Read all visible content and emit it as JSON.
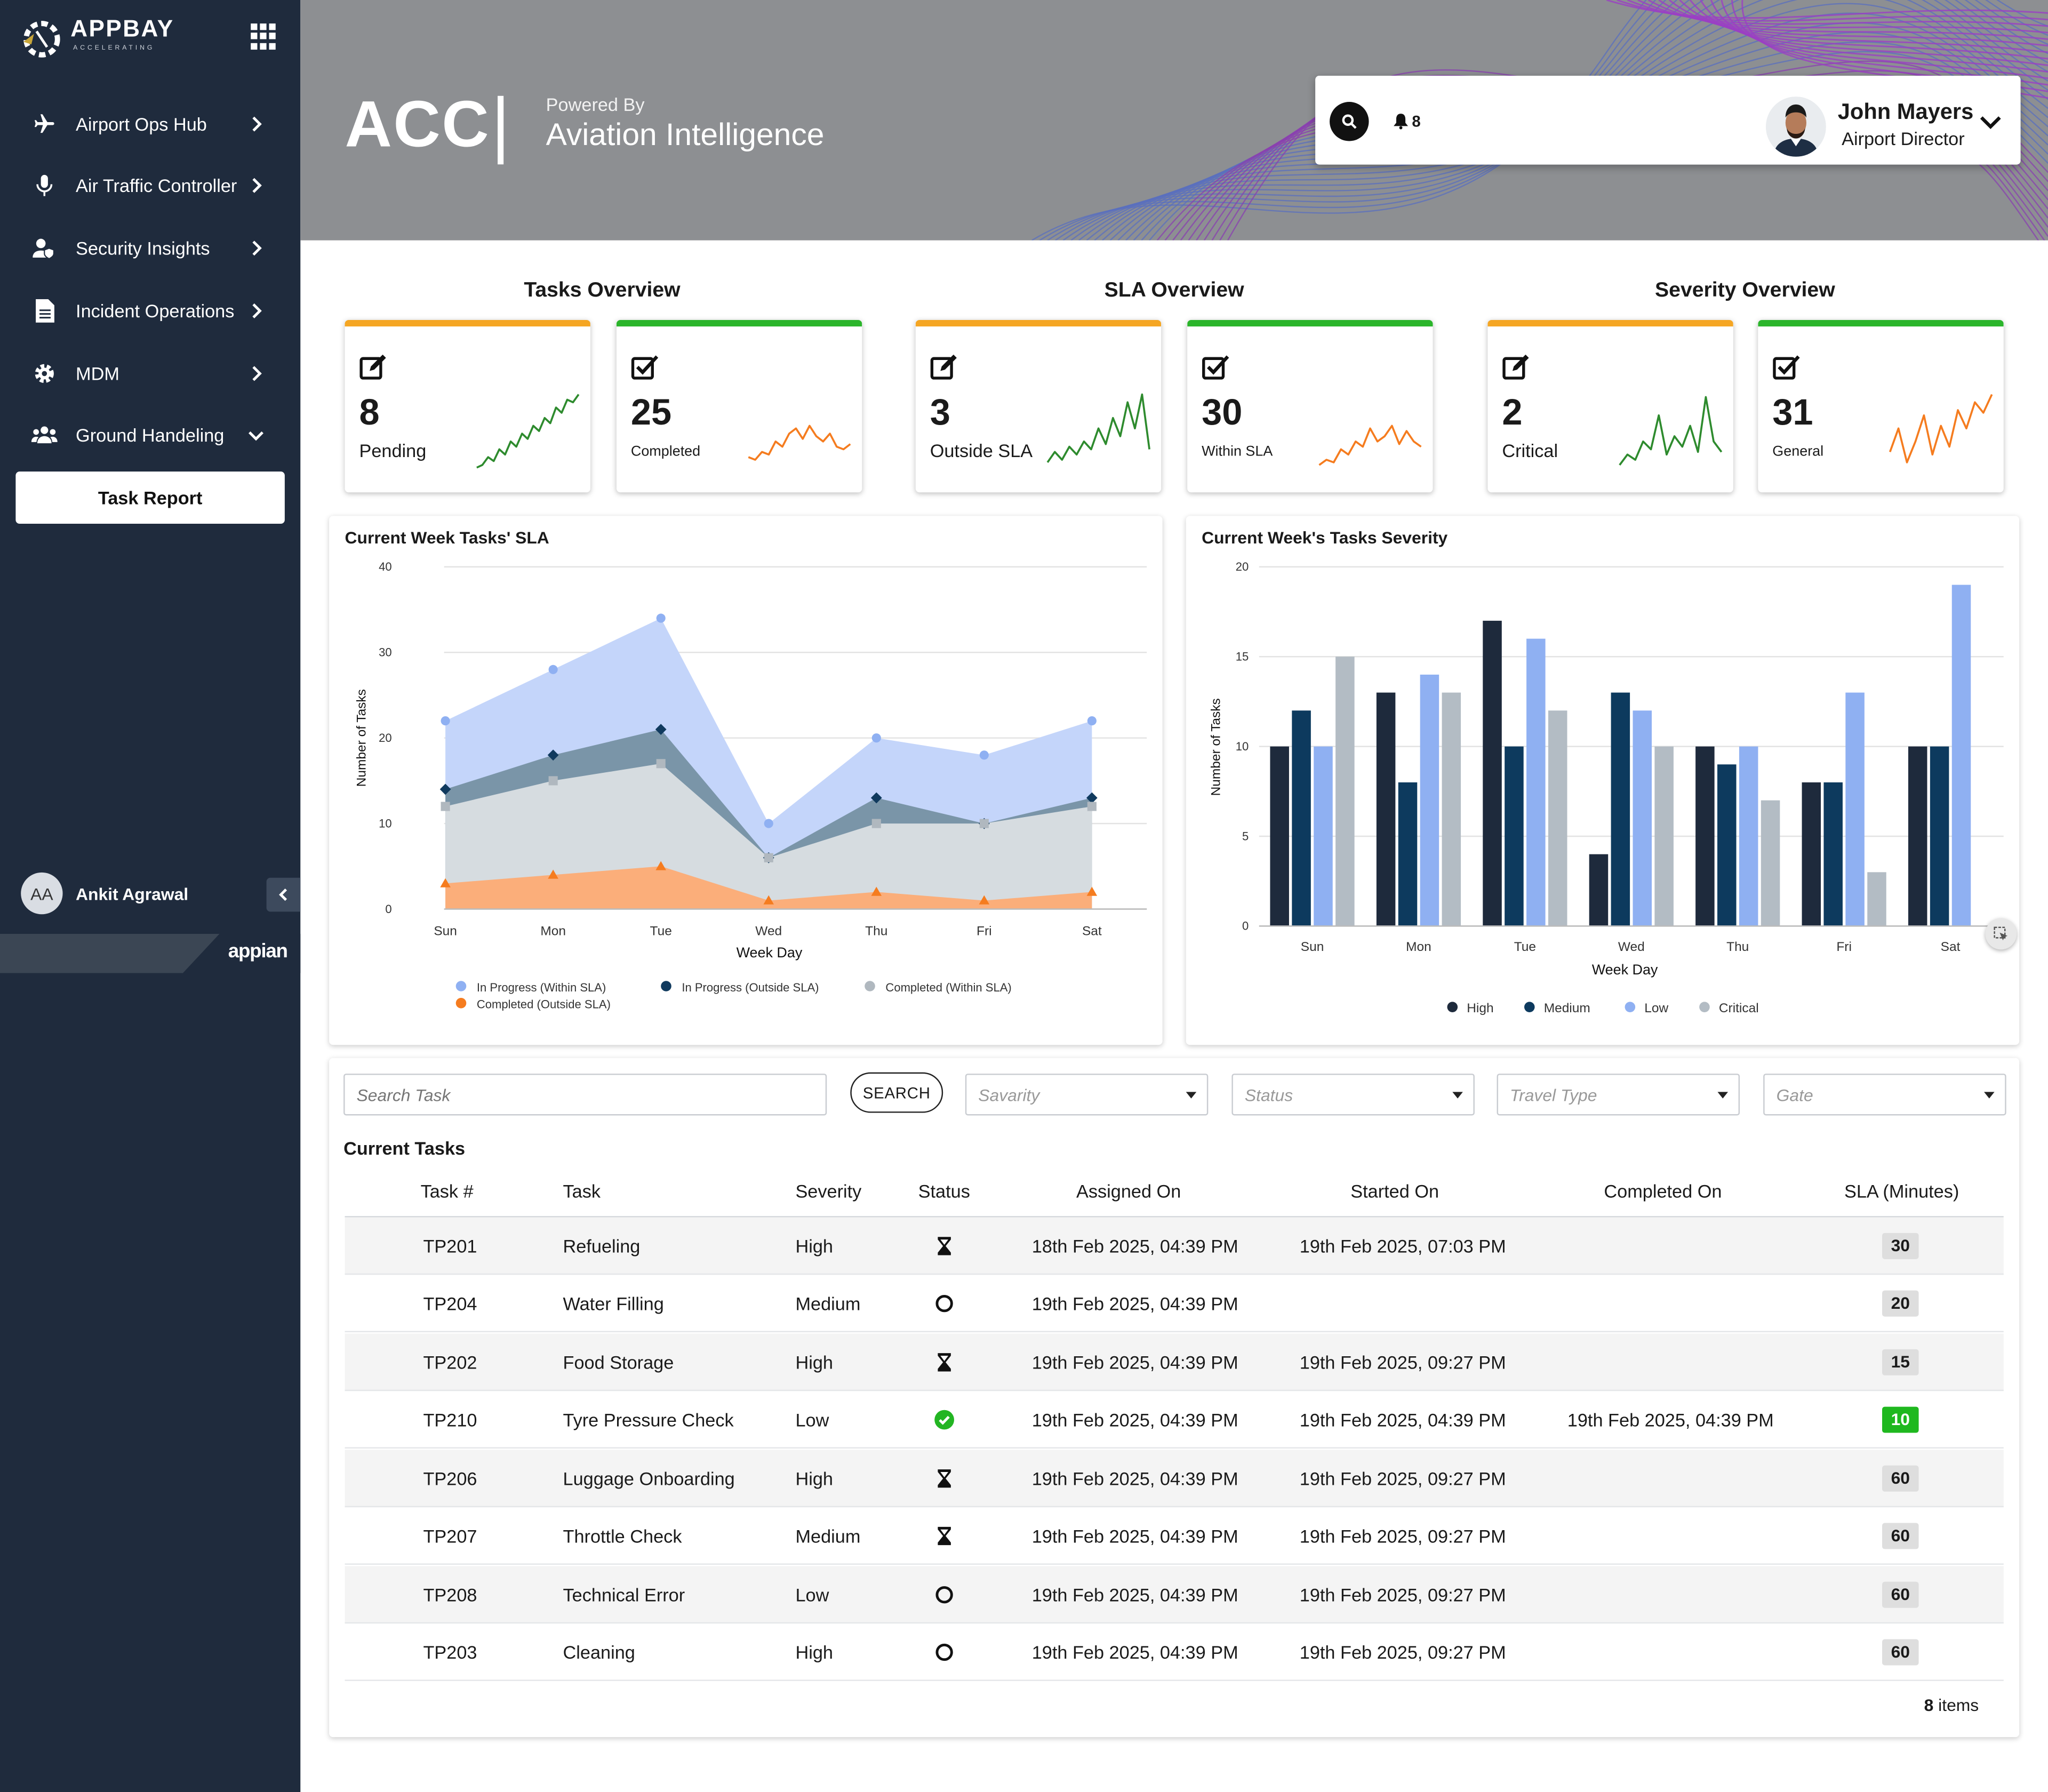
{
  "brand": {
    "name": "APPBAY",
    "tagline": "ACCELERATING"
  },
  "sidebar": {
    "items": [
      {
        "label": "Airport Ops Hub",
        "icon": "plane-icon"
      },
      {
        "label": "Air Traffic Controller",
        "icon": "microphone-icon"
      },
      {
        "label": "Security Insights",
        "icon": "user-shield-icon"
      },
      {
        "label": "Incident Operations",
        "icon": "document-icon"
      },
      {
        "label": "MDM",
        "icon": "gear-icon"
      },
      {
        "label": "Ground Handeling",
        "icon": "users-icon"
      }
    ],
    "active": "Task Report",
    "user_initials": "AA",
    "user_name": "Ankit Agrawal",
    "footer_brand": "appian"
  },
  "header": {
    "title": "ACC",
    "divider": "|",
    "powered": "Powered By",
    "subtitle": "Aviation Intelligence",
    "notifications": "8",
    "user_name": "John Mayers",
    "user_role": "Airport Director"
  },
  "overview": {
    "tasks_title": "Tasks Overview",
    "sla_title": "SLA Overview",
    "severity_title": "Severity Overview",
    "cards": [
      {
        "value": "8",
        "label": "Pending",
        "color": "#2e8b2e",
        "accent": "#f5a623"
      },
      {
        "value": "25",
        "label": "Completed",
        "color": "#f57c1f",
        "accent": "#2bb52b"
      },
      {
        "value": "3",
        "label": "Outside SLA",
        "color": "#2e8b2e",
        "accent": "#f5a623"
      },
      {
        "value": "30",
        "label": "Within SLA",
        "color": "#f57c1f",
        "accent": "#2bb52b"
      },
      {
        "value": "2",
        "label": "Critical",
        "color": "#2e8b2e",
        "accent": "#f5a623"
      },
      {
        "value": "31",
        "label": "General",
        "color": "#f57c1f",
        "accent": "#2bb52b"
      }
    ]
  },
  "chart_data": [
    {
      "type": "area",
      "title": "Current Week Tasks' SLA",
      "xlabel": "Week Day",
      "ylabel": "Number of Tasks",
      "ylim": [
        0,
        40
      ],
      "yticks": [
        0,
        10,
        20,
        30,
        40
      ],
      "categories": [
        "Sun",
        "Mon",
        "Tue",
        "Wed",
        "Thu",
        "Fri",
        "Sat"
      ],
      "series": [
        {
          "name": "In Progress (Within SLA)",
          "color": "#9db8f4",
          "values": [
            22,
            28,
            34,
            10,
            20,
            18,
            22
          ]
        },
        {
          "name": "In Progress (Outside SLA)",
          "color": "#103a5e",
          "values": [
            14,
            18,
            21,
            6,
            13,
            10,
            13
          ]
        },
        {
          "name": "Completed (Within SLA)",
          "color": "#b7c0c8",
          "values": [
            12,
            15,
            17,
            6,
            10,
            10,
            12
          ]
        },
        {
          "name": "Completed (Outside SLA)",
          "color": "#f57c1f",
          "values": [
            3,
            4,
            5,
            1,
            2,
            1,
            2
          ]
        }
      ],
      "grid": true,
      "legend": "bottom"
    },
    {
      "type": "bar",
      "title": "Current Week's Tasks Severity",
      "xlabel": "Week Day",
      "ylabel": "Number of Tasks",
      "ylim": [
        0,
        20
      ],
      "yticks": [
        0,
        5,
        10,
        15,
        20
      ],
      "categories": [
        "Sun",
        "Mon",
        "Tue",
        "Wed",
        "Thu",
        "Fri",
        "Sat"
      ],
      "series": [
        {
          "name": "High",
          "color": "#1e2a3c",
          "values": [
            10,
            13,
            17,
            4,
            10,
            8,
            10
          ]
        },
        {
          "name": "Medium",
          "color": "#0d3a5e",
          "values": [
            12,
            8,
            10,
            13,
            9,
            8,
            10
          ]
        },
        {
          "name": "Low",
          "color": "#8fb0f2",
          "values": [
            10,
            14,
            16,
            12,
            10,
            13,
            19
          ]
        },
        {
          "name": "Critical",
          "color": "#b3bcc4",
          "values": [
            15,
            13,
            12,
            10,
            7,
            3,
            0
          ]
        }
      ],
      "grid": true,
      "legend": "bottom"
    }
  ],
  "filters": {
    "search_placeholder": "Search Task",
    "search_label": "SEARCH",
    "severity": "Savarity",
    "status": "Status",
    "travel": "Travel Type",
    "gate": "Gate"
  },
  "table": {
    "title": "Current Tasks",
    "columns": [
      "Task #",
      "Task",
      "Severity",
      "Status",
      "Assigned On",
      "Started On",
      "Completed On",
      "SLA (Minutes)"
    ],
    "rows": [
      {
        "id": "TP201",
        "task": "Refueling",
        "severity": "High",
        "status": "in-progress",
        "assigned": "18th Feb 2025, 04:39 PM",
        "started": "19th Feb 2025, 07:03 PM",
        "completed": "",
        "sla": "30"
      },
      {
        "id": "TP204",
        "task": "Water Filling",
        "severity": "Medium",
        "status": "not-started",
        "assigned": "19th Feb 2025, 04:39 PM",
        "started": "",
        "completed": "",
        "sla": "20"
      },
      {
        "id": "TP202",
        "task": "Food Storage",
        "severity": "High",
        "status": "in-progress",
        "assigned": "19th Feb 2025, 04:39 PM",
        "started": "19th Feb 2025, 09:27 PM",
        "completed": "",
        "sla": "15"
      },
      {
        "id": "TP210",
        "task": "Tyre Pressure Check",
        "severity": "Low",
        "status": "completed",
        "assigned": "19th Feb 2025, 04:39 PM",
        "started": "19th Feb 2025, 04:39 PM",
        "completed": "19th Feb 2025, 04:39 PM",
        "sla": "10"
      },
      {
        "id": "TP206",
        "task": "Luggage Onboarding",
        "severity": "High",
        "status": "in-progress",
        "assigned": "19th Feb 2025, 04:39 PM",
        "started": "19th Feb 2025, 09:27 PM",
        "completed": "",
        "sla": "60"
      },
      {
        "id": "TP207",
        "task": "Throttle Check",
        "severity": "Medium",
        "status": "in-progress",
        "assigned": "19th Feb 2025, 04:39 PM",
        "started": "19th Feb 2025, 09:27 PM",
        "completed": "",
        "sla": "60"
      },
      {
        "id": "TP208",
        "task": "Technical Error",
        "severity": "Low",
        "status": "not-started",
        "assigned": "19th Feb 2025, 04:39 PM",
        "started": "19th Feb 2025, 09:27 PM",
        "completed": "",
        "sla": "60"
      },
      {
        "id": "TP203",
        "task": "Cleaning",
        "severity": "High",
        "status": "not-started",
        "assigned": "19th Feb 2025, 04:39 PM",
        "started": "19th Feb 2025, 09:27 PM",
        "completed": "",
        "sla": "60"
      }
    ],
    "count": "8",
    "count_label": "items"
  }
}
